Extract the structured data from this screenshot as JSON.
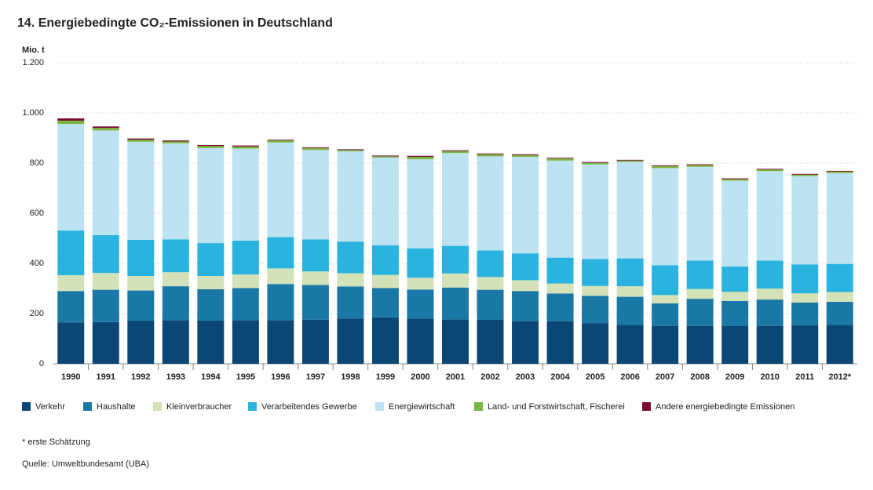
{
  "chart_data": {
    "type": "stacked_bar",
    "title": "14. Energiebedingte CO₂-Emissionen in Deutschland",
    "y_label": "Mio. t",
    "categories": [
      "1990",
      "1991",
      "1992",
      "1993",
      "1994",
      "1995",
      "1996",
      "1997",
      "1998",
      "1999",
      "2000",
      "2001",
      "2002",
      "2003",
      "2004",
      "2005",
      "2006",
      "2007",
      "2008",
      "2009",
      "2010",
      "2011",
      "2012*"
    ],
    "series": [
      {
        "name": "Verkehr",
        "color": "#0b4774",
        "values": [
          165,
          166,
          172,
          174,
          172,
          174,
          174,
          176,
          180,
          185,
          180,
          177,
          175,
          170,
          170,
          161,
          155,
          151,
          151,
          150,
          151,
          154,
          155
        ]
      },
      {
        "name": "Haushalte",
        "color": "#1a78a6",
        "values": [
          125,
          129,
          120,
          135,
          125,
          128,
          144,
          138,
          128,
          117,
          116,
          127,
          120,
          120,
          110,
          110,
          112,
          90,
          108,
          100,
          105,
          90,
          92
        ]
      },
      {
        "name": "Kleinverbraucher",
        "color": "#d3e2b8",
        "values": [
          63,
          67,
          58,
          56,
          53,
          54,
          62,
          54,
          53,
          52,
          47,
          56,
          51,
          43,
          40,
          39,
          42,
          33,
          39,
          37,
          44,
          37,
          39
        ]
      },
      {
        "name": "Verarbeitendes Gewerbe",
        "color": "#29b3de",
        "values": [
          178,
          151,
          144,
          131,
          131,
          135,
          125,
          128,
          126,
          118,
          117,
          110,
          106,
          107,
          103,
          108,
          111,
          119,
          113,
          101,
          111,
          115,
          112
        ]
      },
      {
        "name": "Energiewirtschaft",
        "color": "#bde3f2",
        "values": [
          425,
          417,
          391,
          383,
          379,
          367,
          377,
          356,
          360,
          350,
          355,
          370,
          375,
          385,
          387,
          377,
          385,
          387,
          374,
          342,
          357,
          352,
          362
        ]
      },
      {
        "name": "Land- und Forstwirtschaft, Fischerei",
        "color": "#7ab642",
        "values": [
          13,
          10,
          8,
          7,
          8,
          8,
          8,
          8,
          5,
          5,
          10,
          8,
          8,
          7,
          8,
          6,
          5,
          8,
          7,
          6,
          6,
          6,
          6
        ]
      },
      {
        "name": "Andere energiebedingte Emissionen",
        "color": "#7a0a2e",
        "values": [
          9,
          6,
          5,
          4,
          4,
          4,
          3,
          3,
          3,
          3,
          4,
          3,
          3,
          3,
          3,
          3,
          3,
          3,
          3,
          3,
          3,
          3,
          3
        ]
      }
    ],
    "ylim": [
      0,
      1200
    ],
    "yticks": [
      0,
      200,
      400,
      600,
      800,
      {
        "value": 1000,
        "label": "1.000"
      },
      {
        "value": 1200,
        "label": "1.200"
      }
    ],
    "grid": true,
    "footnote": "* erste Schätzung",
    "source": "Quelle: Umweltbundesamt (UBA)"
  }
}
